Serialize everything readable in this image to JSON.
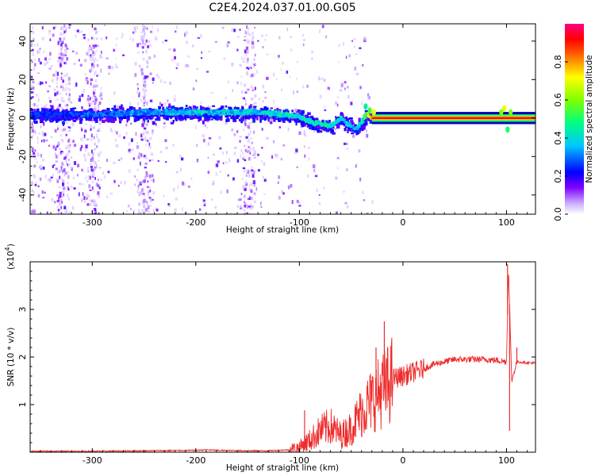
{
  "figure_title": "C2E4.2024.037.01.00.G05",
  "chart_data": [
    {
      "type": "heatmap",
      "title": "",
      "xlabel": "Height of straight line (km)",
      "ylabel": "Frequency (Hz)",
      "xlim": [
        -360,
        128
      ],
      "ylim": [
        -50,
        49
      ],
      "x_ticks": [
        -300,
        -200,
        -100,
        0,
        100
      ],
      "y_ticks": [
        -40,
        -20,
        0,
        20,
        40
      ],
      "colorbar": {
        "label": "Normalized spectral amplitude",
        "range": [
          0,
          1
        ],
        "ticks": [
          "0.0",
          "0.2",
          "0.4",
          "0.6",
          "0.8"
        ],
        "colors": [
          "#ffffff",
          "#8000ff",
          "#0000ff",
          "#00ffff",
          "#00ff00",
          "#ffff00",
          "#ff0000",
          "#ff0080"
        ]
      },
      "ridge": {
        "x": [
          -360,
          -300,
          -250,
          -200,
          -160,
          -140,
          -120,
          -100,
          -90,
          -80,
          -70,
          -60,
          -50,
          -45,
          -40,
          -35,
          -30,
          0,
          90,
          100,
          128
        ],
        "y": [
          2,
          2,
          3,
          3,
          3,
          3,
          2,
          1,
          -2,
          -3,
          -4,
          0,
          -4,
          -6,
          -2,
          2,
          0,
          0,
          0,
          1,
          0
        ],
        "amplitude": [
          0.25,
          0.3,
          0.35,
          0.4,
          0.4,
          0.4,
          0.45,
          0.45,
          0.45,
          0.45,
          0.45,
          0.45,
          0.4,
          0.35,
          0.45,
          0.55,
          0.9,
          0.9,
          0.9,
          0.7,
          0.9
        ]
      },
      "noise_bands_x": [
        -330,
        -300,
        -250,
        -150
      ]
    },
    {
      "type": "line",
      "title": "",
      "xlabel": "Height of straight line (km)",
      "ylabel": "SNR (10 * v/v)",
      "multiplier_label": "(x10",
      "multiplier_exp": "4",
      "xlim": [
        -360,
        128
      ],
      "ylim": [
        0,
        4
      ],
      "x_ticks": [
        -300,
        -200,
        -100,
        0,
        100
      ],
      "y_ticks": [
        1,
        2,
        3
      ],
      "color": "#ee2c2c",
      "series": [
        {
          "x": [
            -360,
            -300,
            -250,
            -200,
            -190,
            -180,
            -150,
            -130,
            -110,
            -100,
            -90,
            -80,
            -70,
            -60,
            -50,
            -40,
            -30,
            -20,
            -15,
            -10,
            0,
            10,
            20,
            30,
            40,
            50,
            60,
            70,
            80,
            90,
            95,
            100,
            102,
            105,
            110,
            120,
            128
          ],
          "values": [
            0.02,
            0.02,
            0.03,
            0.04,
            0.05,
            0.04,
            0.03,
            0.03,
            0.05,
            0.1,
            0.25,
            0.45,
            0.55,
            0.35,
            0.5,
            0.85,
            1.1,
            1.3,
            1.4,
            1.55,
            1.6,
            1.68,
            1.75,
            1.85,
            1.9,
            1.95,
            1.95,
            1.95,
            1.95,
            1.93,
            1.92,
            1.9,
            3.9,
            1.5,
            1.9,
            1.88,
            1.87
          ],
          "spikes": [
            {
              "x": -18,
              "value": 2.75
            },
            {
              "x": -26,
              "value": 2.2
            },
            {
              "x": -95,
              "value": 0.88
            },
            {
              "x": 101,
              "value": 3.95
            },
            {
              "x": 103,
              "value": 0.45
            },
            {
              "x": 110,
              "value": 2.2
            }
          ]
        }
      ]
    }
  ]
}
